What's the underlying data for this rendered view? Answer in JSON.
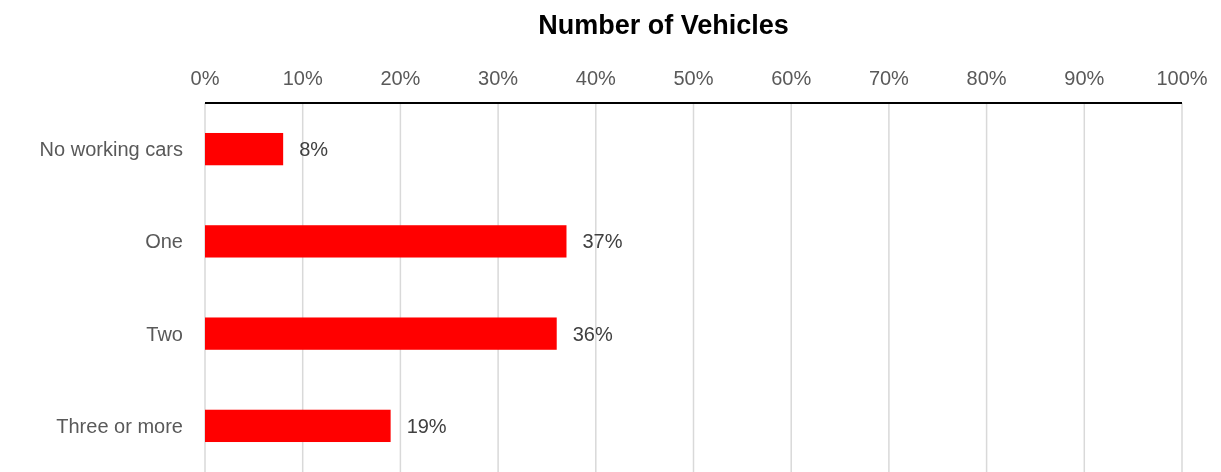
{
  "chart_data": {
    "type": "bar",
    "orientation": "horizontal",
    "title": "Number of Vehicles",
    "categories": [
      "No working cars",
      "One",
      "Two",
      "Three or more"
    ],
    "values": [
      8,
      37,
      36,
      19
    ],
    "color": "#ff0000",
    "value_labels": [
      "8%",
      "37%",
      "36%",
      "19%"
    ],
    "xlim": [
      0,
      100
    ],
    "xticks": [
      {
        "value": 0,
        "label": "0%"
      },
      {
        "value": 10,
        "label": "10%"
      },
      {
        "value": 20,
        "label": "20%"
      },
      {
        "value": 30,
        "label": "30%"
      },
      {
        "value": 40,
        "label": "40%"
      },
      {
        "value": 50,
        "label": "50%"
      },
      {
        "value": 60,
        "label": "60%"
      },
      {
        "value": 70,
        "label": "70%"
      },
      {
        "value": 80,
        "label": "80%"
      },
      {
        "value": 90,
        "label": "90%"
      },
      {
        "value": 100,
        "label": "100%"
      }
    ],
    "grid": "x"
  }
}
